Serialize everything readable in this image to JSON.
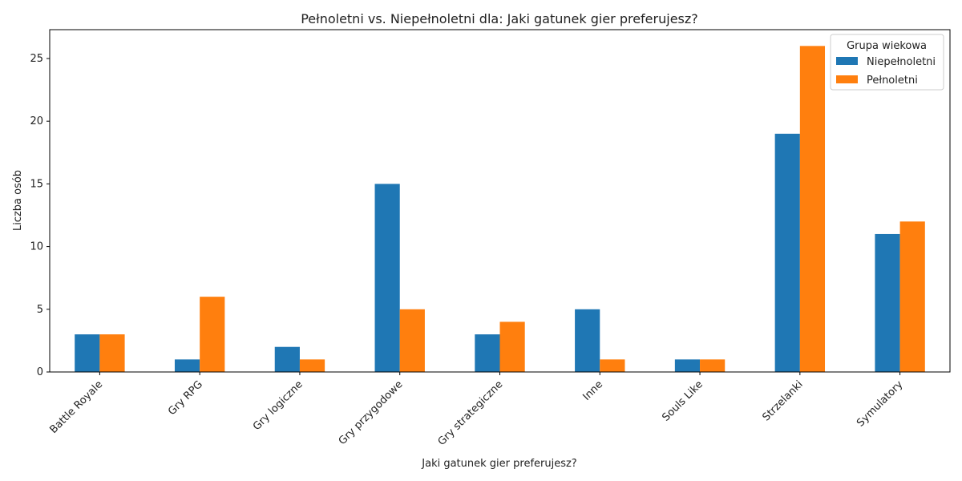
{
  "chart_data": {
    "type": "bar",
    "title": "Pełnoletni vs. Niepełnoletni dla: Jaki gatunek gier preferujesz?",
    "xlabel": "Jaki gatunek gier preferujesz?",
    "ylabel": "Liczba osób",
    "categories": [
      "Battle Royale",
      "Gry RPG",
      "Gry logiczne",
      "Gry przygodowe",
      "Gry strategiczne",
      "Inne",
      "Souls Like",
      "Strzelanki",
      "Symulatory"
    ],
    "series": [
      {
        "name": "Niepełnoletni",
        "color": "#1f77b4",
        "values": [
          3,
          1,
          2,
          15,
          3,
          5,
          1,
          19,
          11
        ]
      },
      {
        "name": "Pełnoletni",
        "color": "#ff7f0e",
        "values": [
          3,
          6,
          1,
          5,
          4,
          1,
          1,
          26,
          12
        ]
      }
    ],
    "ylim": [
      0,
      27.3
    ],
    "yticks": [
      0,
      5,
      10,
      15,
      20,
      25
    ],
    "grid": false,
    "legend": {
      "title": "Grupa wiekowa",
      "position": "top-right"
    }
  }
}
